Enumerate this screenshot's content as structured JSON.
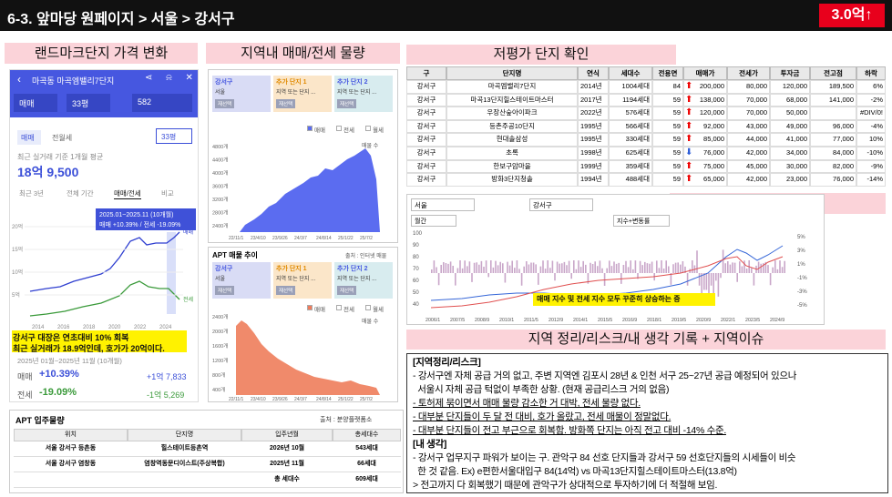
{
  "header": {
    "title": "6-3. 앞마당 원페이지 > 서울 > 강서구",
    "badge": "3.0억↑"
  },
  "landmark": {
    "label": "랜드마크단지 가격 변화",
    "app_title": "마곡동 마곡엠밸리7단지",
    "filters": [
      "매매",
      "33평",
      "582"
    ],
    "tabs": [
      "매매",
      "전월세"
    ],
    "size_select": "33평",
    "avg_caption": "최근 실거래 기준 1개월 평균",
    "avg_price": "18억 9,500",
    "periods": [
      "최근 3년",
      "전체 기간",
      "매매/전세",
      "비교"
    ],
    "tooltip": [
      "2025.01~2025.11 (10개월)",
      "매매 +10.39% / 전세 -19.09%"
    ],
    "y_labels": [
      "20억",
      "15억",
      "10억",
      "5억"
    ],
    "x_labels": [
      "2014",
      "2016",
      "2018",
      "2020",
      "2022",
      "2024"
    ],
    "line_labels": [
      "매매",
      "전세"
    ],
    "note": [
      "강서구 대장은 연초대비 10% 회복",
      "최근 실거래가 18.9억인데, 호가가 20억이다."
    ],
    "range": "2025년 01월~2025년 11월 (10개월)",
    "changes": [
      {
        "name": "매매",
        "pct": "+10.39%",
        "amount": "+1억 7,833"
      },
      {
        "name": "전세",
        "pct": "-19.09%",
        "amount": "-1억 5,269"
      }
    ]
  },
  "supply": {
    "label": "지역내 매매/전세 물량",
    "chart_title": "APT 매물 추이",
    "source": "출처 : 인터넷 매물",
    "selectors": [
      {
        "title": "강서구",
        "sub": "서울",
        "button": "재선택"
      },
      {
        "title": "추가 단지 1",
        "sub": "지역 또는 단지 ...",
        "button": "재선택"
      },
      {
        "title": "추가 단지 2",
        "sub": "지역 또는 단지 ...",
        "button": "재선택"
      }
    ],
    "legend": [
      "매매",
      "전세",
      "월세"
    ],
    "unit": "매물 수",
    "sale_y": [
      "4800개",
      "4400개",
      "4000개",
      "3600개",
      "3200개",
      "2800개",
      "2400개"
    ],
    "rent_y": [
      "2400개",
      "2000개",
      "1600개",
      "1200개",
      "800개",
      "400개"
    ],
    "x_labels": [
      "22/11/1",
      "23/4/10",
      "23/9/26",
      "24/3/7",
      "24/8/14",
      "25/1/22",
      "25/7/2"
    ]
  },
  "undervalued": {
    "label": "저평가 단지 확인",
    "columns": [
      "구",
      "단지명",
      "연식",
      "세대수",
      "전용면",
      "매매가",
      "전세가",
      "투자금",
      "전고점",
      "하락"
    ],
    "rows": [
      [
        "강서구",
        "마곡엠밸리7단지",
        "2014년",
        "1004세대",
        "84",
        "200,000",
        "80,000",
        "120,000",
        "189,500",
        "6%"
      ],
      [
        "강서구",
        "마곡13단지힐스테이트마스터",
        "2017년",
        "1194세대",
        "59",
        "138,000",
        "70,000",
        "68,000",
        "141,000",
        "-2%"
      ],
      [
        "강서구",
        "우장산숲아이파크",
        "2022년",
        "576세대",
        "59",
        "120,000",
        "70,000",
        "50,000",
        null,
        "#DIV/0!"
      ],
      [
        "강서구",
        "등촌주공10단지",
        "1995년",
        "566세대",
        "59",
        "92,000",
        "43,000",
        "49,000",
        "96,000",
        "-4%"
      ],
      [
        "강서구",
        "현대솔삼성",
        "1995년",
        "330세대",
        "59",
        "85,000",
        "44,000",
        "41,000",
        "77,000",
        "10%"
      ],
      [
        "강서구",
        "초록",
        "1998년",
        "625세대",
        "59",
        "76,000",
        "42,000",
        "34,000",
        "84,000",
        "-10%"
      ],
      [
        "강서구",
        "한보구암마을",
        "1999년",
        "359세대",
        "59",
        "75,000",
        "45,000",
        "30,000",
        "82,000",
        "-9%"
      ],
      [
        "강서구",
        "방화3단지청솔",
        "1994년",
        "488세대",
        "59",
        "65,000",
        "42,000",
        "23,000",
        "76,000",
        "-14%"
      ]
    ],
    "arrows": [
      "up",
      "up",
      "up",
      "up",
      "up",
      "down",
      "up",
      "up"
    ]
  },
  "index_chart": {
    "region": "서울",
    "district": "강서구",
    "period": "월간",
    "mode": "지수+변동률",
    "y_left": [
      "100",
      "90",
      "80",
      "70",
      "60",
      "50",
      "40"
    ],
    "y_right": [
      "5%",
      "3%",
      "1%",
      "-1%",
      "-3%",
      "-5%"
    ],
    "x_labels": [
      "2006/1",
      "2007/5",
      "2008/9",
      "2010/1",
      "2011/5",
      "2012/9",
      "2014/1",
      "2015/5",
      "2016/9",
      "2018/1",
      "2019/5",
      "2020/9",
      "2022/1",
      "2023/5",
      "2024/9"
    ],
    "note": "매매 지수 및 전세 지수 모두 꾸준히 상승하는 중"
  },
  "issue_label": "지역 이슈",
  "move_in": {
    "title": "APT 입주물량",
    "source": "출처 : 분양플랫폼소",
    "columns": [
      "위치",
      "단지명",
      "입주년월",
      "총세대수"
    ],
    "rows": [
      [
        "서울 강서구 등촌동",
        "힐스테이트등촌역",
        "2026년 10월",
        "543세대"
      ],
      [
        "서울 강서구 염창동",
        "염창역동문디이스트(주상복합)",
        "2025년 11월",
        "66세대"
      ],
      [
        null,
        null,
        "총 세대수",
        "609세대"
      ]
    ]
  },
  "notes": {
    "label": "지역 정리/리스크/내 생각 기록 + 지역이슈",
    "lines": [
      "[지역정리/리스크]",
      "- 강서구엔 자체 공급 거의 없고, 주변 지역엔 김포시 28년 & 인천 서구 25~27년 공급 예정되어 있으나",
      "  서울시 자체 공급 턱없이 부족한 상황. (현재 공급리스크 거의 없음)",
      "- 토허제 묶이면서 매매 물량 감소한 거 대박, 전세 물량 없다.",
      "- 대부분 단지들이 두 달 전 대비, 호가 올랐고, 전세 매물이 정말없다.",
      "- 대부분 단지들이 전고 부근으로 회복함. 방화쪽 단지는 아직 전고 대비 -14% 수준.",
      "[내 생각]",
      "- 강서구 업무지구 파워가 보이는 구. 관악구 84 선호 단지들과 강서구 59 선호단지들의 시세들이 비슷",
      "  한 것 같음. Ex) e편한서울대입구 84(14억) vs 마곡13단지힐스테이트마스터(13.8억)",
      "> 전고까지 다 회복했기 때문에 관악구가 상대적으로 투자하기에 더 적절해 보임."
    ]
  }
}
